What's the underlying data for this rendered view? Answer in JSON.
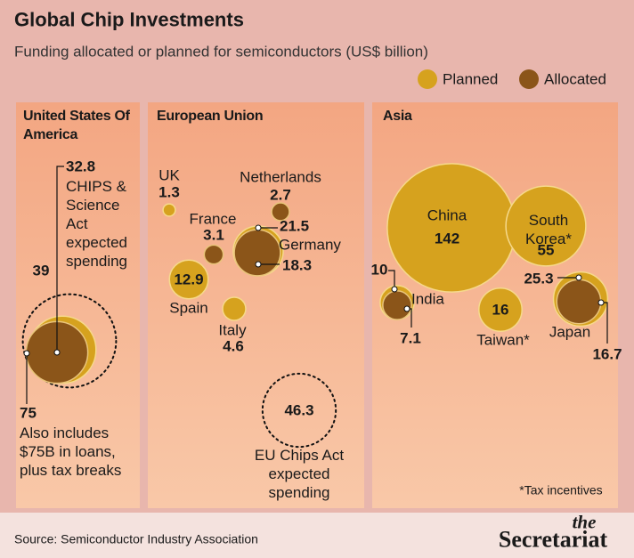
{
  "chart_data": {
    "type": "bubble",
    "title": "Global Chip Investments",
    "subtitle": "Funding allocated or planned for semiconductors (US$ billion)",
    "legend": [
      {
        "name": "Planned",
        "color": "#d6a21e"
      },
      {
        "name": "Allocated",
        "color": "#8b5519"
      }
    ],
    "panels": [
      {
        "title": "United States Of America",
        "items": [
          {
            "planned": 39,
            "allocated": 32.8,
            "allocated_note": "CHIPS & Science Act expected spending",
            "total": 75,
            "total_note": "Also includes $75B in loans, plus tax breaks"
          }
        ]
      },
      {
        "title": "European Union",
        "items": [
          {
            "name": "UK",
            "planned": 1.3
          },
          {
            "name": "Netherlands",
            "allocated": 2.7
          },
          {
            "name": "France",
            "allocated": 3.1
          },
          {
            "name": "Germany",
            "planned": 21.5,
            "allocated": 18.3
          },
          {
            "name": "Spain",
            "planned": 12.9
          },
          {
            "name": "Italy",
            "planned": 4.6
          },
          {
            "name": "EU Chips Act expected spending",
            "total": 46.3
          }
        ]
      },
      {
        "title": "Asia",
        "items": [
          {
            "name": "China",
            "planned": 142
          },
          {
            "name": "South Korea*",
            "planned": 55
          },
          {
            "name": "India",
            "planned": 10,
            "allocated": 7.1
          },
          {
            "name": "Taiwan*",
            "planned": 16
          },
          {
            "name": "Japan",
            "planned": 25.3,
            "allocated": 16.7
          }
        ]
      }
    ],
    "footnote": "*Tax incentives",
    "source": "Source: Semiconductor Industry Association",
    "brand_small": "the",
    "brand": "Secretariat"
  }
}
